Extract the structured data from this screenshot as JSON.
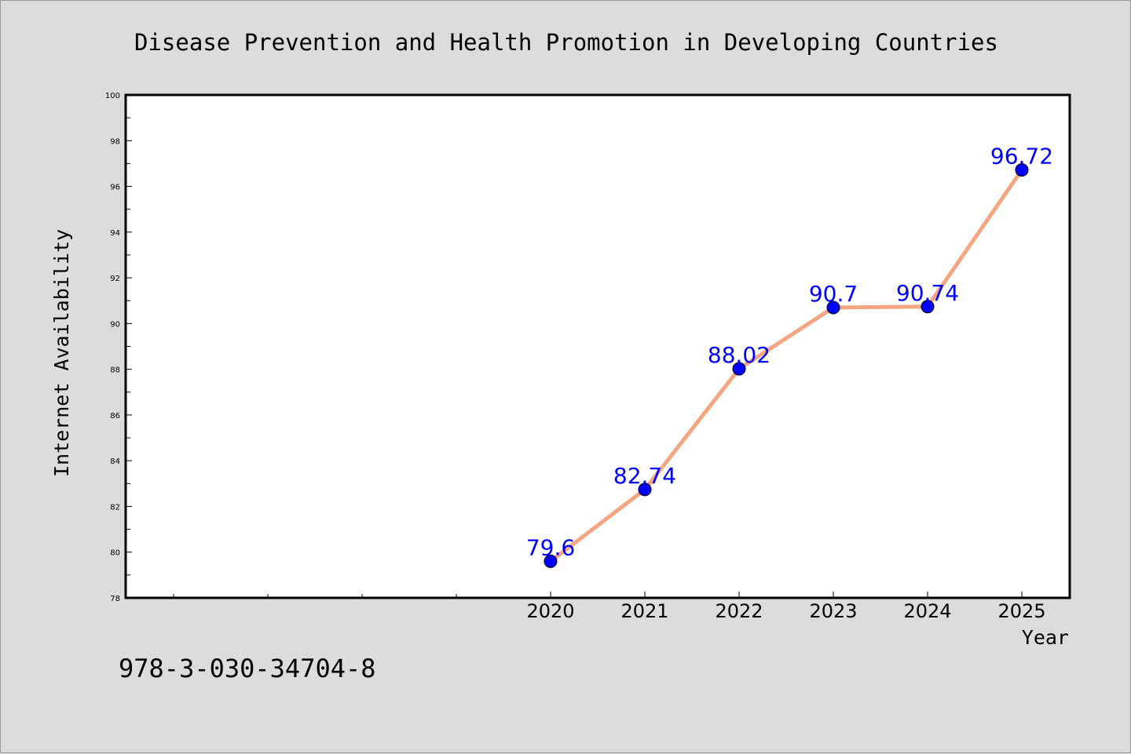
{
  "figure": {
    "footer_text": "978-3-030-34704-8",
    "background_color": "#dcdcdc"
  },
  "chart_data": {
    "type": "line",
    "title": "Disease Prevention and Health Promotion in Developing Countries",
    "xlabel": "Year",
    "ylabel": "Internet Availability",
    "x": [
      "2020",
      "2021",
      "2022",
      "2023",
      "2024",
      "2025"
    ],
    "series": [
      {
        "values": [
          79.6,
          82.74,
          88.02,
          90.7,
          90.74,
          96.72
        ],
        "labels": [
          "79.6",
          "82.74",
          "88.02",
          "90.7",
          "90.74",
          "96.72"
        ],
        "line_color": "#f4a582",
        "marker_color": "#0000ff"
      }
    ],
    "ylim": [
      78,
      100
    ],
    "yticks": [
      "78",
      "80",
      "82",
      "84",
      "86",
      "88",
      "90",
      "92",
      "94",
      "96",
      "98",
      "100"
    ],
    "xlim_extra_ticks_left": 4,
    "grid": false,
    "legend": "none",
    "label_color": "#0000ff"
  }
}
